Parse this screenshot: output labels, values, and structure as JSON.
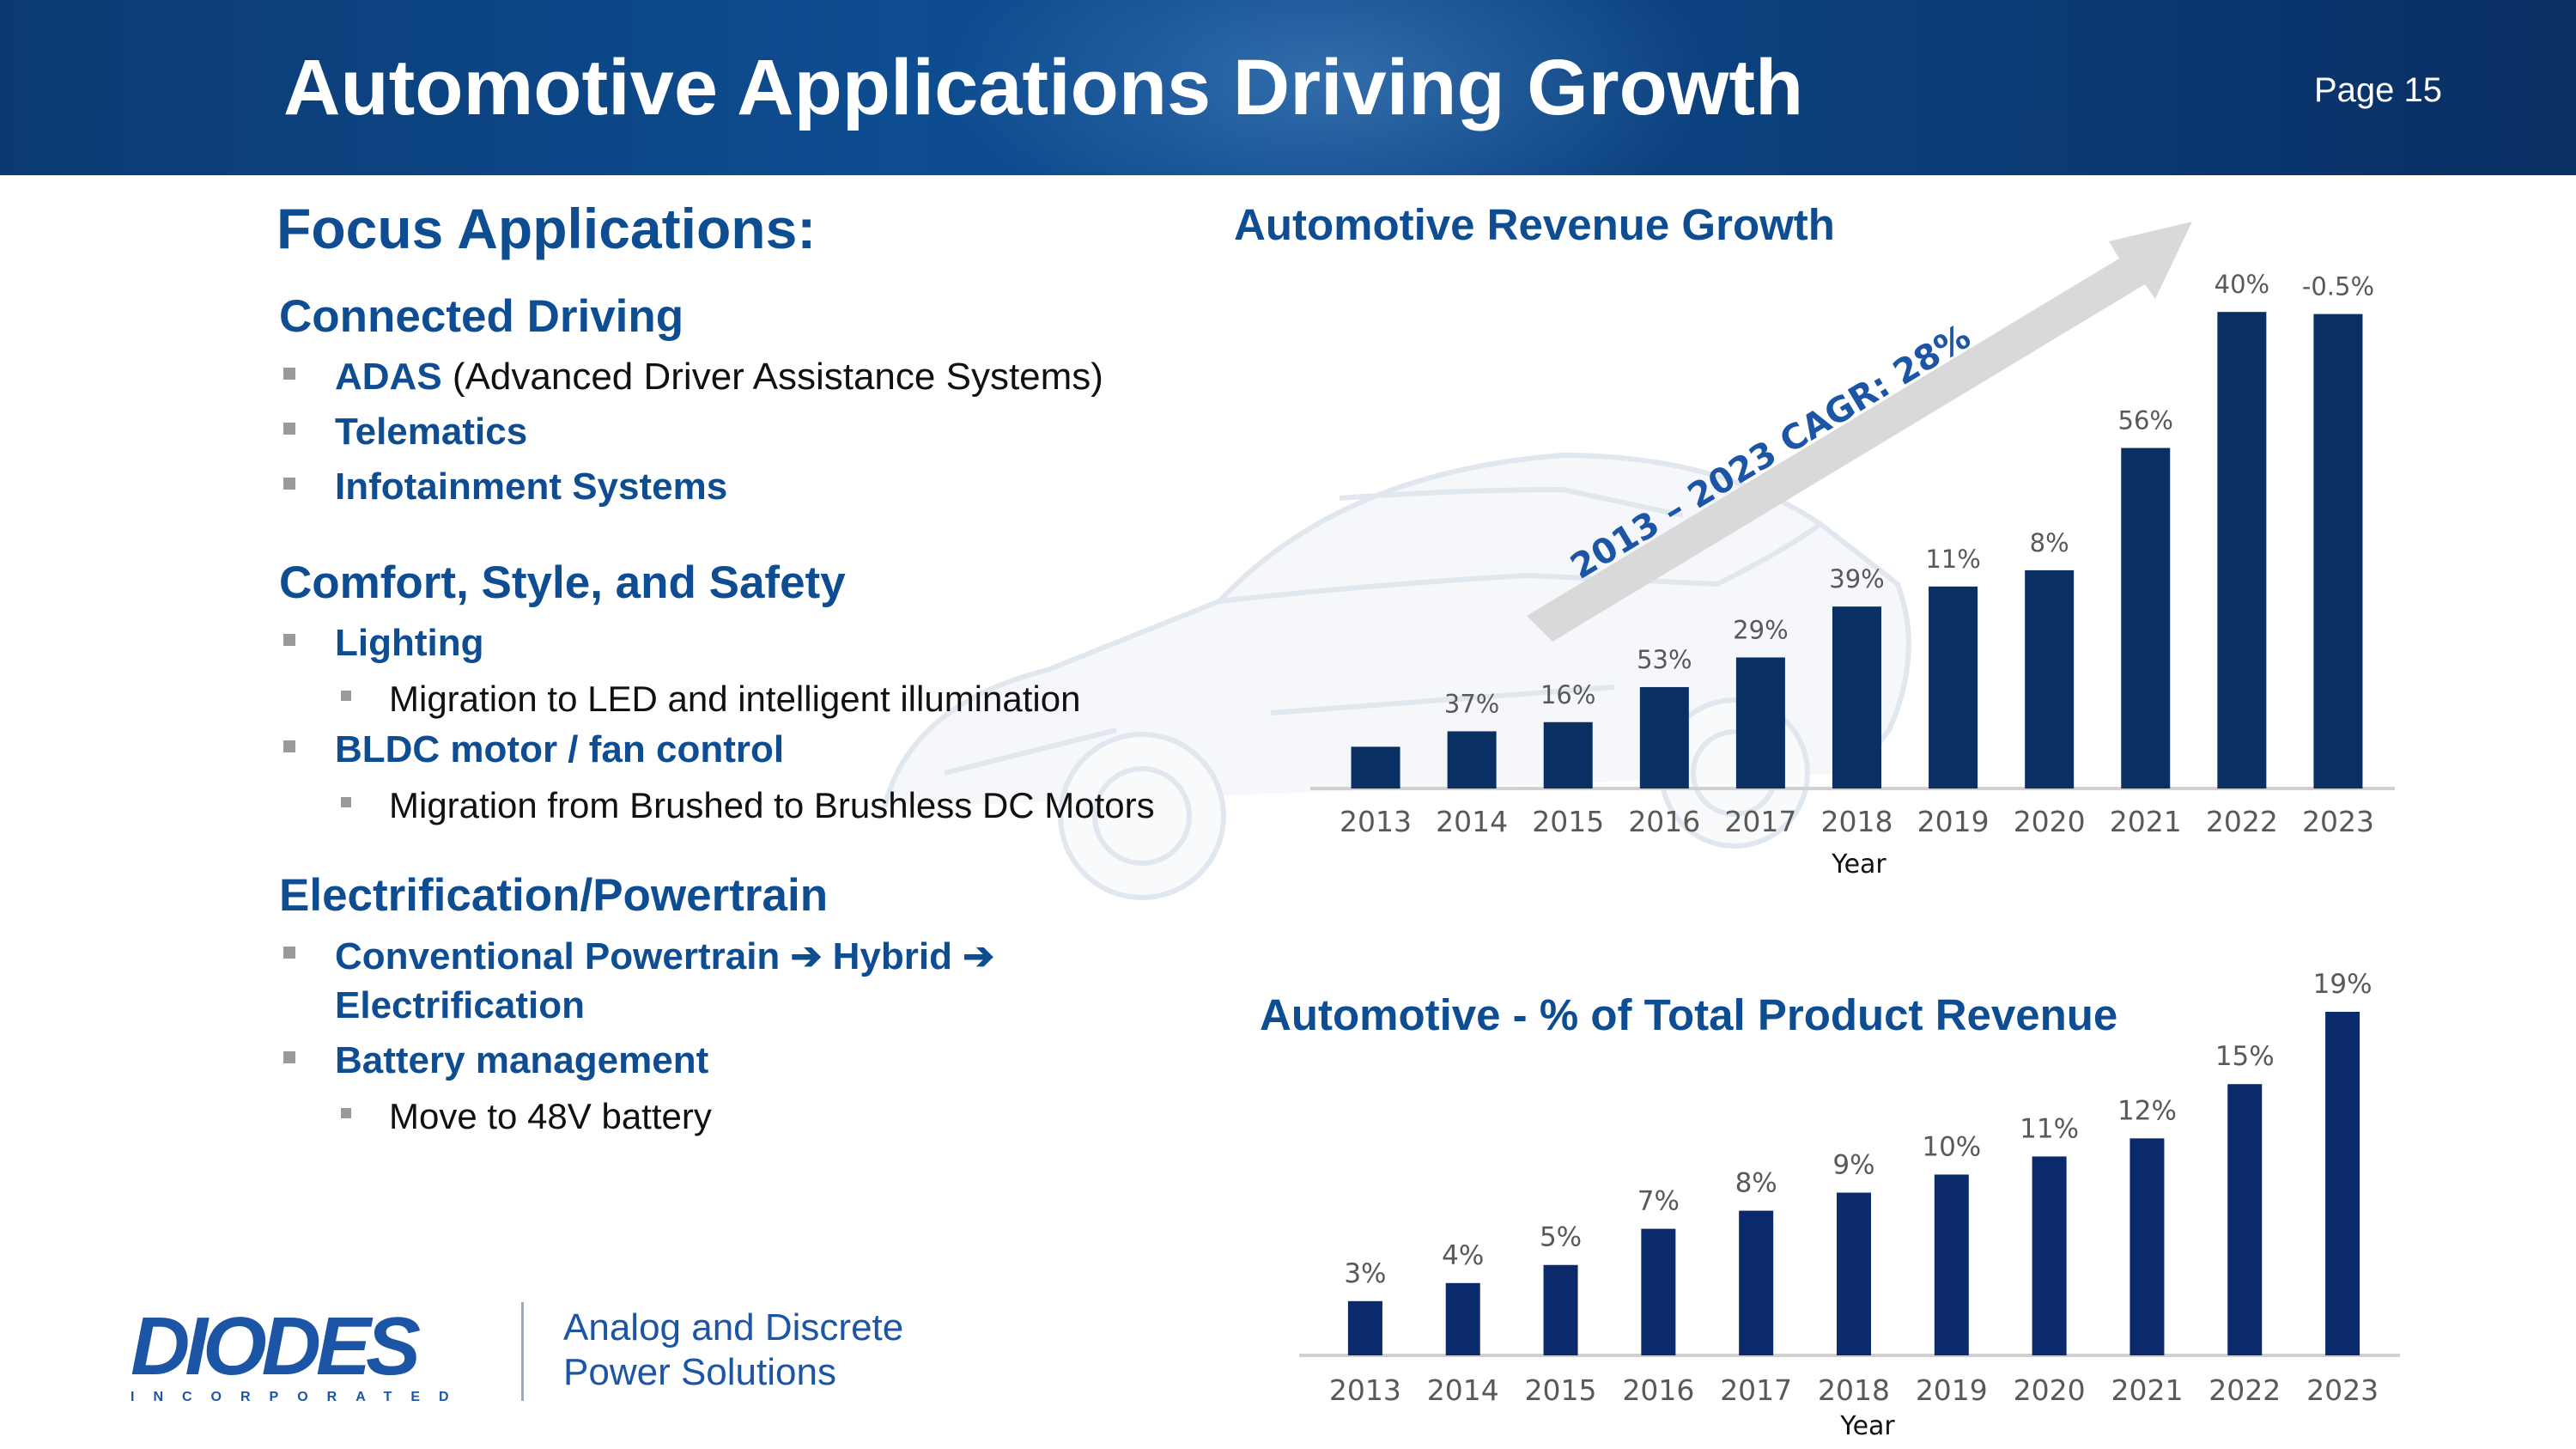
{
  "header": {
    "title": "Automotive Applications Driving Growth",
    "page": "Page 15"
  },
  "left": {
    "heading": "Focus Applications:",
    "sections": [
      {
        "title": "Connected Driving"
      },
      {
        "title": "Comfort, Style, and Safety"
      },
      {
        "title": "Electrification/Powertrain"
      }
    ],
    "adas_bold": "ADAS",
    "adas_rest": " (Advanced Driver Assistance Systems)",
    "telematics": "Telematics",
    "infotainment": "Infotainment Systems",
    "lighting": "Lighting",
    "lighting_sub": "Migration to LED and intelligent illumination",
    "bldc": "BLDC motor / fan control",
    "bldc_sub": "Migration from Brushed to Brushless DC Motors",
    "powertrain_line1": "Conventional Powertrain ➔ Hybrid ➔",
    "powertrain_line2": "Electrification",
    "battery": "Battery management",
    "battery_sub": "Move to 48V battery"
  },
  "logo": {
    "name": "DIODES",
    "sub": "INCORPORATED",
    "tagline1": "Analog and Discrete",
    "tagline2": "Power Solutions"
  },
  "colors": {
    "brand": "#0e4d91",
    "bar1": "#0a2f63",
    "bar2": "#0a2a6b"
  },
  "chart_data": [
    {
      "type": "bar",
      "title": "Automotive Revenue Growth",
      "xlabel": "Year",
      "ylabel": "",
      "categories": [
        "2013",
        "2014",
        "2015",
        "2016",
        "2017",
        "2018",
        "2019",
        "2020",
        "2021",
        "2022",
        "2023"
      ],
      "values": [
        1.0,
        1.37,
        1.59,
        2.43,
        3.14,
        4.36,
        4.84,
        5.23,
        8.16,
        11.42,
        11.37
      ],
      "labels": [
        "",
        "37%",
        "16%",
        "53%",
        "29%",
        "39%",
        "11%",
        "8%",
        "56%",
        "40%",
        "-0.5%"
      ],
      "ylim": [
        0,
        12
      ],
      "annotation": "2013 – 2023 CAGR: 28%"
    },
    {
      "type": "bar",
      "title": "Automotive - % of Total Product Revenue",
      "xlabel": "Year",
      "ylabel": "",
      "categories": [
        "2013",
        "2014",
        "2015",
        "2016",
        "2017",
        "2018",
        "2019",
        "2020",
        "2021",
        "2022",
        "2023"
      ],
      "values": [
        3,
        4,
        5,
        7,
        8,
        9,
        10,
        11,
        12,
        15,
        19
      ],
      "labels": [
        "3%",
        "4%",
        "5%",
        "7%",
        "8%",
        "9%",
        "10%",
        "11%",
        "12%",
        "15%",
        "19%"
      ],
      "ylim": [
        0,
        19
      ]
    }
  ]
}
